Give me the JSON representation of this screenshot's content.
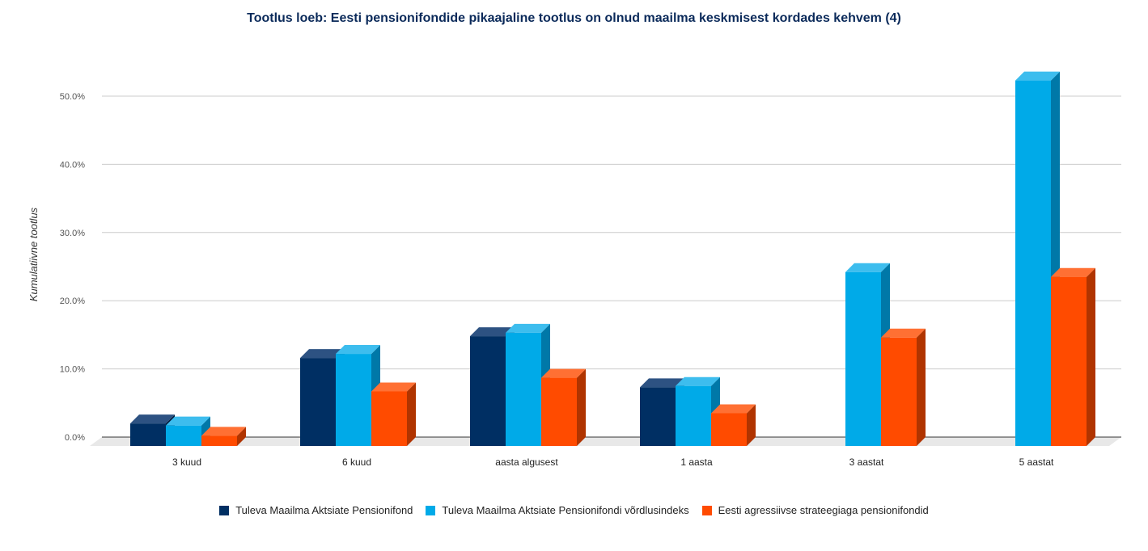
{
  "chart_data": {
    "type": "bar",
    "title": "Tootlus loeb: Eesti pensionifondide pikaajaline tootlus on olnud maailma keskmisest kordades kehvem (4)",
    "ylabel": "Kumulatiivne tootlus",
    "xlabel": "",
    "ylim": [
      0,
      50
    ],
    "yticks": [
      "0.0%",
      "10.0%",
      "20.0%",
      "30.0%",
      "40.0%",
      "50.0%"
    ],
    "ytick_values": [
      0,
      10,
      20,
      30,
      40,
      50
    ],
    "grid": true,
    "legend": "bottom",
    "three_d": true,
    "categories": [
      "3 kuud",
      "6 kuud",
      "aasta algusest",
      "1 aasta",
      "3 aastat",
      "5 aastat"
    ],
    "series": [
      {
        "name": "Tuleva Maailma Aktsiate Pensionifond",
        "color": "#002f63",
        "top_color": "#2d5282",
        "side_color": "#001b3d",
        "values": [
          3.3,
          12.9,
          16.1,
          8.6,
          null,
          null
        ]
      },
      {
        "name": "Tuleva Maailma Aktsiate Pensionifondi võrdlusindeks",
        "color": "#00aae8",
        "top_color": "#3dbdee",
        "side_color": "#0078a8",
        "values": [
          3.0,
          13.5,
          16.6,
          8.8,
          25.5,
          53.6
        ]
      },
      {
        "name": "Eesti agressiivse strateegiaga pensionifondid",
        "color": "#ff4b00",
        "top_color": "#ff7033",
        "side_color": "#b03400",
        "values": [
          1.5,
          8.0,
          10.0,
          4.8,
          15.9,
          24.8
        ]
      }
    ]
  }
}
